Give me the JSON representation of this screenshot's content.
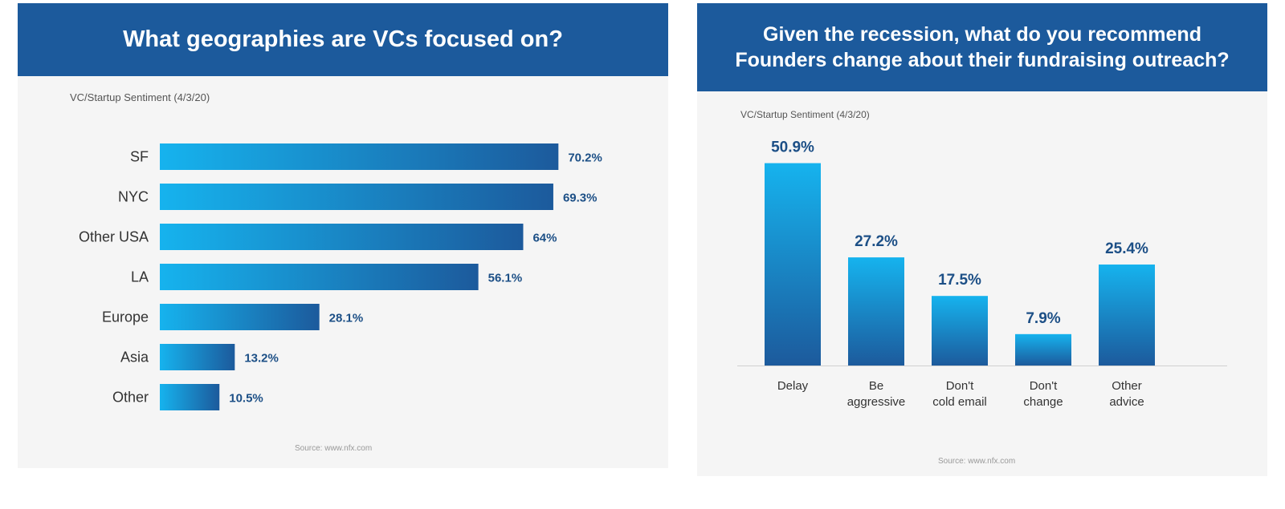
{
  "colors": {
    "banner": "#1c5a9c",
    "bar_light": "#16b3ee",
    "bar_dark": "#1c5a9c",
    "value_text": "#1c4f86",
    "panel_bg": "#f5f5f5"
  },
  "chart_data": [
    {
      "type": "bar",
      "orientation": "horizontal",
      "title": "What geographies are VCs focused on?",
      "subtitle": "VC/Startup Sentiment (4/3/20)",
      "source": "Source: www.nfx.com",
      "categories": [
        "SF",
        "NYC",
        "Other USA",
        "LA",
        "Europe",
        "Asia",
        "Other"
      ],
      "values": [
        70.2,
        69.3,
        64,
        56.1,
        28.1,
        13.2,
        10.5
      ],
      "value_labels": [
        "70.2%",
        "69.3%",
        "64%",
        "56.1%",
        "28.1%",
        "13.2%",
        "10.5%"
      ],
      "xlim": [
        0,
        100
      ],
      "grid": false,
      "legend": "none"
    },
    {
      "type": "bar",
      "orientation": "vertical",
      "title_lines": [
        "Given the recession, what do you recommend",
        "Founders change about their fundraising outreach?"
      ],
      "subtitle": "VC/Startup Sentiment (4/3/20)",
      "source": "Source: www.nfx.com",
      "categories": [
        [
          "Delay"
        ],
        [
          "Be",
          "aggressive"
        ],
        [
          "Don't",
          "cold email"
        ],
        [
          "Don't",
          "change"
        ],
        [
          "Other",
          "advice"
        ]
      ],
      "values": [
        50.9,
        27.2,
        17.5,
        7.9,
        25.4
      ],
      "value_labels": [
        "50.9%",
        "27.2%",
        "17.5%",
        "7.9%",
        "25.4%"
      ],
      "ylim": [
        0,
        55
      ],
      "grid": false,
      "legend": "none"
    }
  ]
}
